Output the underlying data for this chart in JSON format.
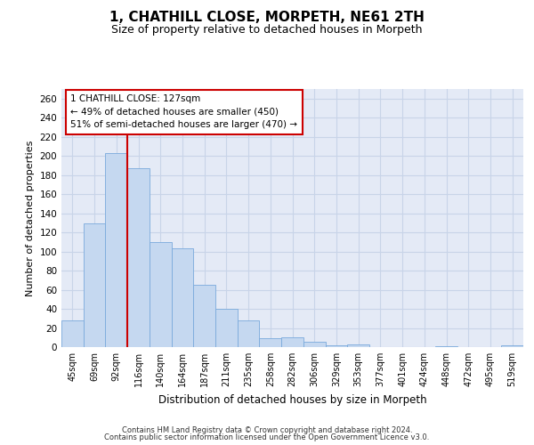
{
  "title": "1, CHATHILL CLOSE, MORPETH, NE61 2TH",
  "subtitle": "Size of property relative to detached houses in Morpeth",
  "xlabel": "Distribution of detached houses by size in Morpeth",
  "ylabel": "Number of detached properties",
  "categories": [
    "45sqm",
    "69sqm",
    "92sqm",
    "116sqm",
    "140sqm",
    "164sqm",
    "187sqm",
    "211sqm",
    "235sqm",
    "258sqm",
    "282sqm",
    "306sqm",
    "329sqm",
    "353sqm",
    "377sqm",
    "401sqm",
    "424sqm",
    "448sqm",
    "472sqm",
    "495sqm",
    "519sqm"
  ],
  "values": [
    28,
    129,
    203,
    187,
    110,
    103,
    65,
    40,
    28,
    9,
    10,
    6,
    2,
    3,
    0,
    0,
    0,
    1,
    0,
    0,
    2
  ],
  "bar_color": "#c5d8f0",
  "bar_edge_color": "#7aaadc",
  "vline_position": 3.0,
  "vline_color": "#cc0000",
  "annotation_line1": "1 CHATHILL CLOSE: 127sqm",
  "annotation_line2": "← 49% of detached houses are smaller (450)",
  "annotation_line3": "51% of semi-detached houses are larger (470) →",
  "footer_line1": "Contains HM Land Registry data © Crown copyright and database right 2024.",
  "footer_line2": "Contains public sector information licensed under the Open Government Licence v3.0.",
  "ylim": [
    0,
    270
  ],
  "yticks": [
    0,
    20,
    40,
    60,
    80,
    100,
    120,
    140,
    160,
    180,
    200,
    220,
    240,
    260
  ],
  "grid_color": "#c8d4e8",
  "axes_bg_color": "#e4eaf6",
  "fig_bg_color": "#ffffff"
}
